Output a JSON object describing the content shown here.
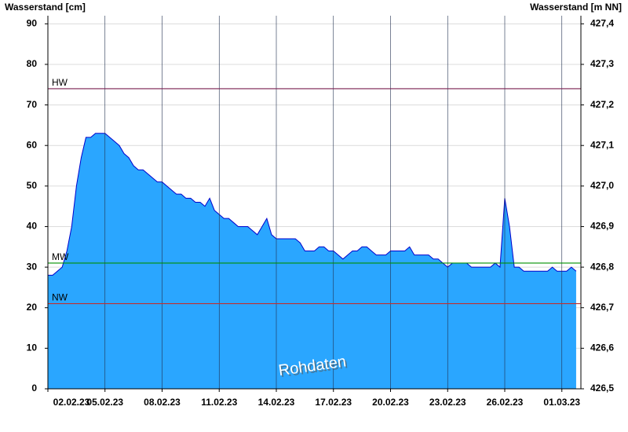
{
  "chart_data": {
    "type": "area",
    "y_label": "Wasserstand [cm]",
    "y2_label": "Wasserstand [m NN]",
    "annotation": "Rohdaten",
    "ylim": [
      0,
      92
    ],
    "yticks": [
      0,
      10,
      20,
      30,
      40,
      50,
      60,
      70,
      80,
      90
    ],
    "y2lim": [
      426.5,
      427.42
    ],
    "y2ticks": [
      {
        "value": 426.5,
        "label": "426,5"
      },
      {
        "value": 426.6,
        "label": "426,6"
      },
      {
        "value": 426.7,
        "label": "426,7"
      },
      {
        "value": 426.8,
        "label": "426,8"
      },
      {
        "value": 426.9,
        "label": "426,9"
      },
      {
        "value": 427.0,
        "label": "427,0"
      },
      {
        "value": 427.1,
        "label": "427,1"
      },
      {
        "value": 427.2,
        "label": "427,2"
      },
      {
        "value": 427.3,
        "label": "427,3"
      },
      {
        "value": 427.4,
        "label": "427,4"
      }
    ],
    "xlim": [
      "2023-02-02T00:00",
      "2023-03-02T00:00"
    ],
    "xticks": [
      {
        "value": "2023-02-02T00:00",
        "label": "02.02.23"
      },
      {
        "value": "2023-02-05T00:00",
        "label": "05.02.23"
      },
      {
        "value": "2023-02-08T00:00",
        "label": "08.02.23"
      },
      {
        "value": "2023-02-11T00:00",
        "label": "11.02.23"
      },
      {
        "value": "2023-02-14T00:00",
        "label": "14.02.23"
      },
      {
        "value": "2023-02-17T00:00",
        "label": "17.02.23"
      },
      {
        "value": "2023-02-20T00:00",
        "label": "20.02.23"
      },
      {
        "value": "2023-02-23T00:00",
        "label": "23.02.23"
      },
      {
        "value": "2023-02-26T00:00",
        "label": "26.02.23"
      },
      {
        "value": "2023-03-01T00:00",
        "label": "01.03.23"
      }
    ],
    "grid": true,
    "reference_lines": [
      {
        "label": "HW",
        "value": 74,
        "color": "#7a1f4f"
      },
      {
        "label": "MW",
        "value": 31,
        "color": "#009000"
      },
      {
        "label": "NW",
        "value": 21,
        "color": "#c03030"
      }
    ],
    "series": [
      {
        "name": "Wasserstand",
        "color": "#2aa6ff",
        "line_color": "#0000cc",
        "x": [
          "2023-02-02T00:00",
          "2023-02-02T06:00",
          "2023-02-02T12:00",
          "2023-02-02T18:00",
          "2023-02-03T00:00",
          "2023-02-03T06:00",
          "2023-02-03T12:00",
          "2023-02-03T18:00",
          "2023-02-04T00:00",
          "2023-02-04T06:00",
          "2023-02-04T12:00",
          "2023-02-04T18:00",
          "2023-02-05T00:00",
          "2023-02-05T06:00",
          "2023-02-05T12:00",
          "2023-02-05T18:00",
          "2023-02-06T00:00",
          "2023-02-06T06:00",
          "2023-02-06T12:00",
          "2023-02-06T18:00",
          "2023-02-07T00:00",
          "2023-02-07T06:00",
          "2023-02-07T12:00",
          "2023-02-07T18:00",
          "2023-02-08T00:00",
          "2023-02-08T06:00",
          "2023-02-08T12:00",
          "2023-02-08T18:00",
          "2023-02-09T00:00",
          "2023-02-09T06:00",
          "2023-02-09T12:00",
          "2023-02-09T18:00",
          "2023-02-10T00:00",
          "2023-02-10T06:00",
          "2023-02-10T12:00",
          "2023-02-10T18:00",
          "2023-02-11T00:00",
          "2023-02-11T06:00",
          "2023-02-11T12:00",
          "2023-02-11T18:00",
          "2023-02-12T00:00",
          "2023-02-12T06:00",
          "2023-02-12T12:00",
          "2023-02-12T18:00",
          "2023-02-13T00:00",
          "2023-02-13T06:00",
          "2023-02-13T12:00",
          "2023-02-13T18:00",
          "2023-02-14T00:00",
          "2023-02-14T06:00",
          "2023-02-14T12:00",
          "2023-02-14T18:00",
          "2023-02-15T00:00",
          "2023-02-15T06:00",
          "2023-02-15T12:00",
          "2023-02-15T18:00",
          "2023-02-16T00:00",
          "2023-02-16T06:00",
          "2023-02-16T12:00",
          "2023-02-16T18:00",
          "2023-02-17T00:00",
          "2023-02-17T06:00",
          "2023-02-17T12:00",
          "2023-02-17T18:00",
          "2023-02-18T00:00",
          "2023-02-18T06:00",
          "2023-02-18T12:00",
          "2023-02-18T18:00",
          "2023-02-19T00:00",
          "2023-02-19T06:00",
          "2023-02-19T12:00",
          "2023-02-19T18:00",
          "2023-02-20T00:00",
          "2023-02-20T06:00",
          "2023-02-20T12:00",
          "2023-02-20T18:00",
          "2023-02-21T00:00",
          "2023-02-21T06:00",
          "2023-02-21T12:00",
          "2023-02-21T18:00",
          "2023-02-22T00:00",
          "2023-02-22T06:00",
          "2023-02-22T12:00",
          "2023-02-22T18:00",
          "2023-02-23T00:00",
          "2023-02-23T06:00",
          "2023-02-23T12:00",
          "2023-02-23T18:00",
          "2023-02-24T00:00",
          "2023-02-24T06:00",
          "2023-02-24T12:00",
          "2023-02-24T18:00",
          "2023-02-25T00:00",
          "2023-02-25T06:00",
          "2023-02-25T12:00",
          "2023-02-25T18:00",
          "2023-02-26T00:00",
          "2023-02-26T06:00",
          "2023-02-26T12:00",
          "2023-02-26T18:00",
          "2023-02-27T00:00",
          "2023-02-27T06:00",
          "2023-02-27T12:00",
          "2023-02-27T18:00",
          "2023-02-28T00:00",
          "2023-02-28T06:00",
          "2023-02-28T12:00",
          "2023-02-28T18:00",
          "2023-03-01T00:00",
          "2023-03-01T06:00",
          "2023-03-01T12:00",
          "2023-03-01T18:00"
        ],
        "values": [
          28,
          28,
          29,
          30,
          34,
          40,
          50,
          57,
          62,
          62,
          63,
          63,
          63,
          62,
          61,
          60,
          58,
          57,
          55,
          54,
          54,
          53,
          52,
          51,
          51,
          50,
          49,
          48,
          48,
          47,
          47,
          46,
          46,
          45,
          47,
          44,
          43,
          42,
          42,
          41,
          40,
          40,
          40,
          39,
          38,
          40,
          42,
          38,
          37,
          37,
          37,
          37,
          37,
          36,
          34,
          34,
          34,
          35,
          35,
          34,
          34,
          33,
          32,
          33,
          34,
          34,
          35,
          35,
          34,
          33,
          33,
          33,
          34,
          34,
          34,
          34,
          35,
          33,
          33,
          33,
          33,
          32,
          32,
          31,
          30,
          31,
          31,
          31,
          31,
          30,
          30,
          30,
          30,
          30,
          31,
          30,
          47,
          40,
          30,
          30,
          29,
          29,
          29,
          29,
          29,
          29,
          30,
          29,
          29,
          29,
          30,
          29
        ]
      }
    ]
  }
}
